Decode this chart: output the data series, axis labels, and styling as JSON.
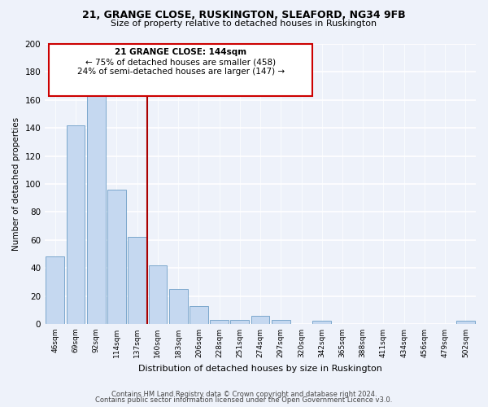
{
  "title1": "21, GRANGE CLOSE, RUSKINGTON, SLEAFORD, NG34 9FB",
  "title2": "Size of property relative to detached houses in Ruskington",
  "xlabel": "Distribution of detached houses by size in Ruskington",
  "ylabel": "Number of detached properties",
  "categories": [
    "46sqm",
    "69sqm",
    "92sqm",
    "114sqm",
    "137sqm",
    "160sqm",
    "183sqm",
    "206sqm",
    "228sqm",
    "251sqm",
    "274sqm",
    "297sqm",
    "320sqm",
    "342sqm",
    "365sqm",
    "388sqm",
    "411sqm",
    "434sqm",
    "456sqm",
    "479sqm",
    "502sqm"
  ],
  "values": [
    48,
    142,
    163,
    96,
    62,
    42,
    25,
    13,
    3,
    3,
    6,
    3,
    0,
    2,
    0,
    0,
    0,
    0,
    0,
    0,
    2
  ],
  "bar_color": "#c5d8f0",
  "bar_edge_color": "#7ba7cc",
  "property_line_x": 4.5,
  "property_line_color": "#aa0000",
  "annotation_title": "21 GRANGE CLOSE: 144sqm",
  "annotation_line1": "← 75% of detached houses are smaller (458)",
  "annotation_line2": "24% of semi-detached houses are larger (147) →",
  "annotation_box_color": "#cc0000",
  "ylim": [
    0,
    200
  ],
  "yticks": [
    0,
    20,
    40,
    60,
    80,
    100,
    120,
    140,
    160,
    180,
    200
  ],
  "footer1": "Contains HM Land Registry data © Crown copyright and database right 2024.",
  "footer2": "Contains public sector information licensed under the Open Government Licence v3.0.",
  "bg_color": "#eef2fa"
}
